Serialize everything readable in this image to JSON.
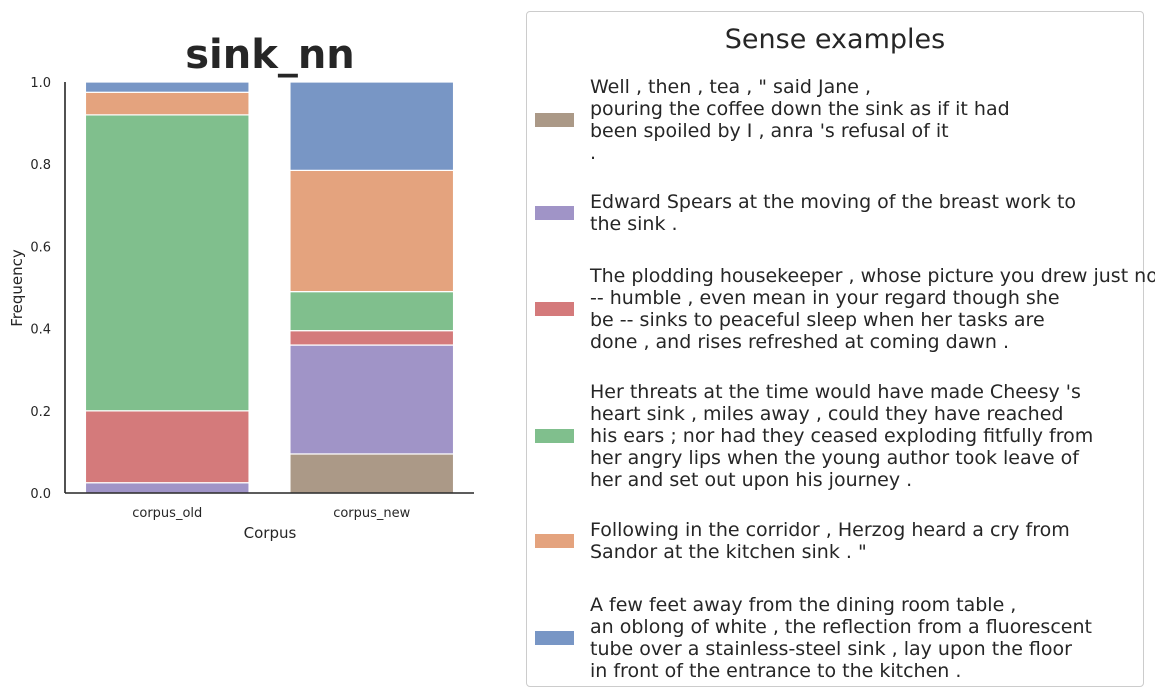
{
  "chart_data": {
    "type": "bar",
    "stacked": true,
    "title": "sink_nn",
    "xlabel": "Corpus",
    "ylabel": "Frequency",
    "ylim": [
      0,
      1.0
    ],
    "yticks": [
      "0.0",
      "0.2",
      "0.4",
      "0.6",
      "0.8",
      "1.0"
    ],
    "categories": [
      "corpus_old",
      "corpus_new"
    ],
    "grid": false,
    "legend_placement": "right",
    "legend_title": "Sense examples",
    "series": [
      {
        "color": "#ab9987",
        "values": [
          0.0,
          0.095
        ],
        "legend_lines": [
          "Well , then , tea , \" said Jane ,",
          "pouring the coffee down the sink as if it had",
          "been spoiled by I , anra 's refusal of it",
          "."
        ]
      },
      {
        "color": "#a094c7",
        "values": [
          0.025,
          0.265
        ],
        "legend_lines": [
          "Edward Spears at the moving of the breast work to",
          "the sink ."
        ]
      },
      {
        "color": "#d47a7b",
        "values": [
          0.175,
          0.035
        ],
        "legend_lines": [
          "The plodding housekeeper , whose picture you drew just now",
          "-- humble , even mean in your regard though she",
          "be -- sinks to peaceful sleep when her tasks are",
          "done , and rises refreshed at coming dawn ."
        ]
      },
      {
        "color": "#80bf8d",
        "values": [
          0.72,
          0.095
        ],
        "legend_lines": [
          "Her threats at the time would have made Cheesy 's",
          "heart sink , miles away , could they have reached",
          "his ears ; nor had they ceased exploding fitfully from",
          "her angry lips when the young author took leave of",
          "her and set out upon his journey ."
        ]
      },
      {
        "color": "#e4a37e",
        "values": [
          0.055,
          0.295
        ],
        "legend_lines": [
          "Following in the corridor , Herzog heard a cry from",
          "Sandor at the kitchen sink . \""
        ]
      },
      {
        "color": "#7896c5",
        "values": [
          0.025,
          0.215
        ],
        "legend_lines": [
          "A few feet away from the dining room table ,",
          "an oblong of white , the reflection from a fluorescent",
          "tube over a stainless-steel sink , lay upon the floor",
          "in front of the entrance to the kitchen ."
        ]
      }
    ]
  }
}
